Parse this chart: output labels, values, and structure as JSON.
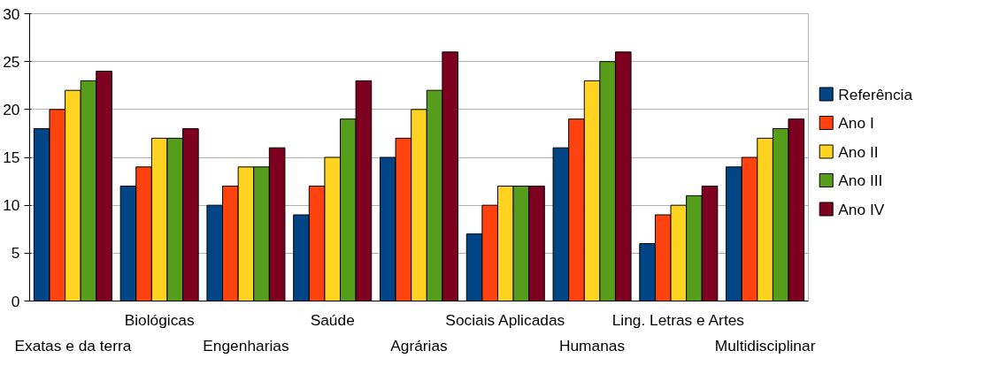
{
  "chart_data": {
    "type": "bar",
    "categories": [
      "Exatas e da terra",
      "Biológicas",
      "Engenharias",
      "Saúde",
      "Agrárias",
      "Sociais Aplicadas",
      "Humanas",
      "Ling. Letras e Artes",
      "Multidisciplinar"
    ],
    "series": [
      {
        "name": "Referência",
        "color": "#004586",
        "values": [
          18,
          12,
          10,
          9,
          15,
          7,
          16,
          6,
          14
        ]
      },
      {
        "name": "Ano I",
        "color": "#ff420e",
        "values": [
          20,
          14,
          12,
          12,
          17,
          10,
          19,
          9,
          15
        ]
      },
      {
        "name": "Ano II",
        "color": "#ffd320",
        "values": [
          22,
          17,
          14,
          15,
          20,
          12,
          23,
          10,
          17
        ]
      },
      {
        "name": "Ano III",
        "color": "#579d1c",
        "values": [
          23,
          17,
          14,
          19,
          22,
          12,
          25,
          11,
          18
        ]
      },
      {
        "name": "Ano IV",
        "color": "#7e0021",
        "values": [
          24,
          18,
          16,
          23,
          26,
          12,
          26,
          12,
          19
        ]
      }
    ],
    "ylim": [
      0,
      30
    ],
    "yticks": [
      0,
      5,
      10,
      15,
      20,
      25,
      30
    ],
    "grid": "y",
    "legend": "right"
  }
}
